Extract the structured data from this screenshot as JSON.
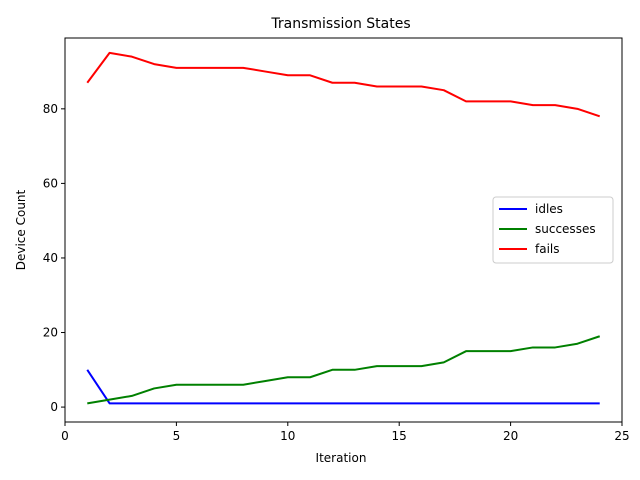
{
  "chart_data": {
    "type": "line",
    "title": "Transmission States",
    "xlabel": "Iteration",
    "ylabel": "Device Count",
    "xlim": [
      0,
      25
    ],
    "ylim": [
      -4,
      99
    ],
    "xticks": [
      0,
      5,
      10,
      15,
      20,
      25
    ],
    "yticks": [
      0,
      20,
      40,
      60,
      80
    ],
    "grid": false,
    "legend_position": "center-right",
    "x": [
      1,
      2,
      3,
      4,
      5,
      6,
      7,
      8,
      9,
      10,
      11,
      12,
      13,
      14,
      15,
      16,
      17,
      18,
      19,
      20,
      21,
      22,
      23,
      24
    ],
    "series": [
      {
        "name": "idles",
        "color": "#0000ff",
        "values": [
          10,
          1,
          1,
          1,
          1,
          1,
          1,
          1,
          1,
          1,
          1,
          1,
          1,
          1,
          1,
          1,
          1,
          1,
          1,
          1,
          1,
          1,
          1,
          1
        ]
      },
      {
        "name": "successes",
        "color": "#008000",
        "values": [
          1,
          2,
          3,
          5,
          6,
          6,
          6,
          6,
          7,
          8,
          8,
          10,
          10,
          11,
          11,
          11,
          12,
          15,
          15,
          15,
          16,
          16,
          17,
          19
        ]
      },
      {
        "name": "fails",
        "color": "#ff0000",
        "values": [
          87,
          95,
          94,
          92,
          91,
          91,
          91,
          91,
          90,
          89,
          89,
          87,
          87,
          86,
          86,
          86,
          85,
          82,
          82,
          82,
          81,
          81,
          80,
          78
        ]
      }
    ]
  }
}
